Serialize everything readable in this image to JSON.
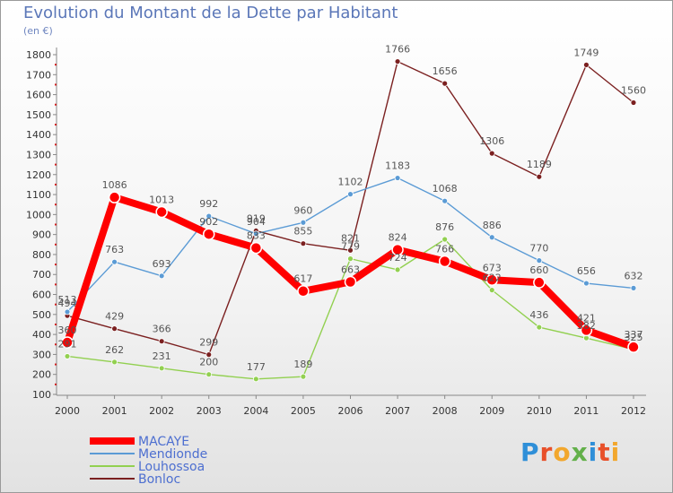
{
  "title": "Evolution du Montant de la Dette par Habitant",
  "unit_label": "(en €)",
  "logo": "Proxiti",
  "chart_data": {
    "type": "line",
    "title": "Evolution du Montant de la Dette par Habitant",
    "ylabel": "(en €)",
    "ylim": [
      100,
      1800
    ],
    "yticks": [
      100,
      200,
      300,
      400,
      500,
      600,
      700,
      800,
      900,
      1000,
      1100,
      1200,
      1300,
      1400,
      1500,
      1600,
      1700,
      1800
    ],
    "x": [
      "2000",
      "2001",
      "2002",
      "2003",
      "2004",
      "2005",
      "2006",
      "2007",
      "2008",
      "2009",
      "2010",
      "2011",
      "2012"
    ],
    "grid": false,
    "legend_position": "bottom-left",
    "series": [
      {
        "name": "MACAYE",
        "color": "#ff0000",
        "values": [
          360,
          1086,
          1013,
          902,
          833,
          617,
          663,
          824,
          766,
          673,
          660,
          421,
          337
        ]
      },
      {
        "name": "Mendionde",
        "color": "#5b9bd5",
        "values": [
          513,
          763,
          693,
          992,
          904,
          960,
          1102,
          1183,
          1068,
          886,
          770,
          656,
          632
        ]
      },
      {
        "name": "Louhossoa",
        "color": "#92d050",
        "values": [
          291,
          262,
          231,
          200,
          177,
          189,
          779,
          724,
          876,
          622,
          436,
          382,
          325
        ]
      },
      {
        "name": "Bonloc",
        "color": "#7b2020",
        "values": [
          494,
          429,
          366,
          299,
          919,
          855,
          821,
          1766,
          1656,
          1306,
          1189,
          1749,
          1560
        ]
      }
    ]
  }
}
